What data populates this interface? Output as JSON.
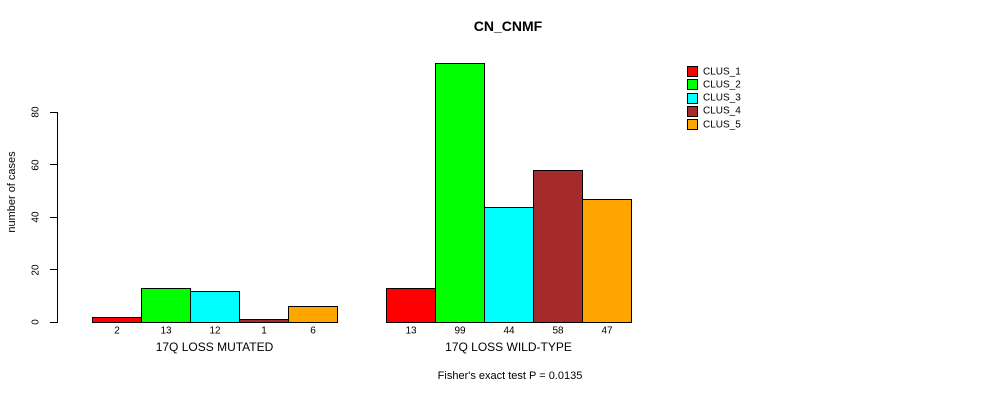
{
  "chart_data": {
    "type": "bar",
    "grouped": true,
    "title": "CN_CNMF",
    "ylabel": "number of cases",
    "xlabel": "",
    "categories": [
      "17Q LOSS MUTATED",
      "17Q LOSS WILD-TYPE"
    ],
    "series": [
      {
        "name": "CLUS_1",
        "color": "#FF0000",
        "values": [
          2,
          13
        ]
      },
      {
        "name": "CLUS_2",
        "color": "#00FF00",
        "values": [
          13,
          99
        ]
      },
      {
        "name": "CLUS_3",
        "color": "#00FFFF",
        "values": [
          12,
          44
        ]
      },
      {
        "name": "CLUS_4",
        "color": "#A52A2A",
        "values": [
          1,
          58
        ]
      },
      {
        "name": "CLUS_5",
        "color": "#FFA500",
        "values": [
          6,
          47
        ]
      }
    ],
    "bar_labels": [
      [
        "2",
        "13",
        "12",
        "1",
        "6"
      ],
      [
        "13",
        "99",
        "44",
        "58",
        "47"
      ]
    ],
    "yticks": [
      "0",
      "20",
      "40",
      "60",
      "80"
    ],
    "ylim": [
      0,
      99
    ],
    "grid": false,
    "legend_position": "right",
    "bar_border_color": "#000000",
    "axis_color": "#000000",
    "background": "#FFFFFF",
    "annotation": "Fisher's exact test P = 0.0135"
  }
}
